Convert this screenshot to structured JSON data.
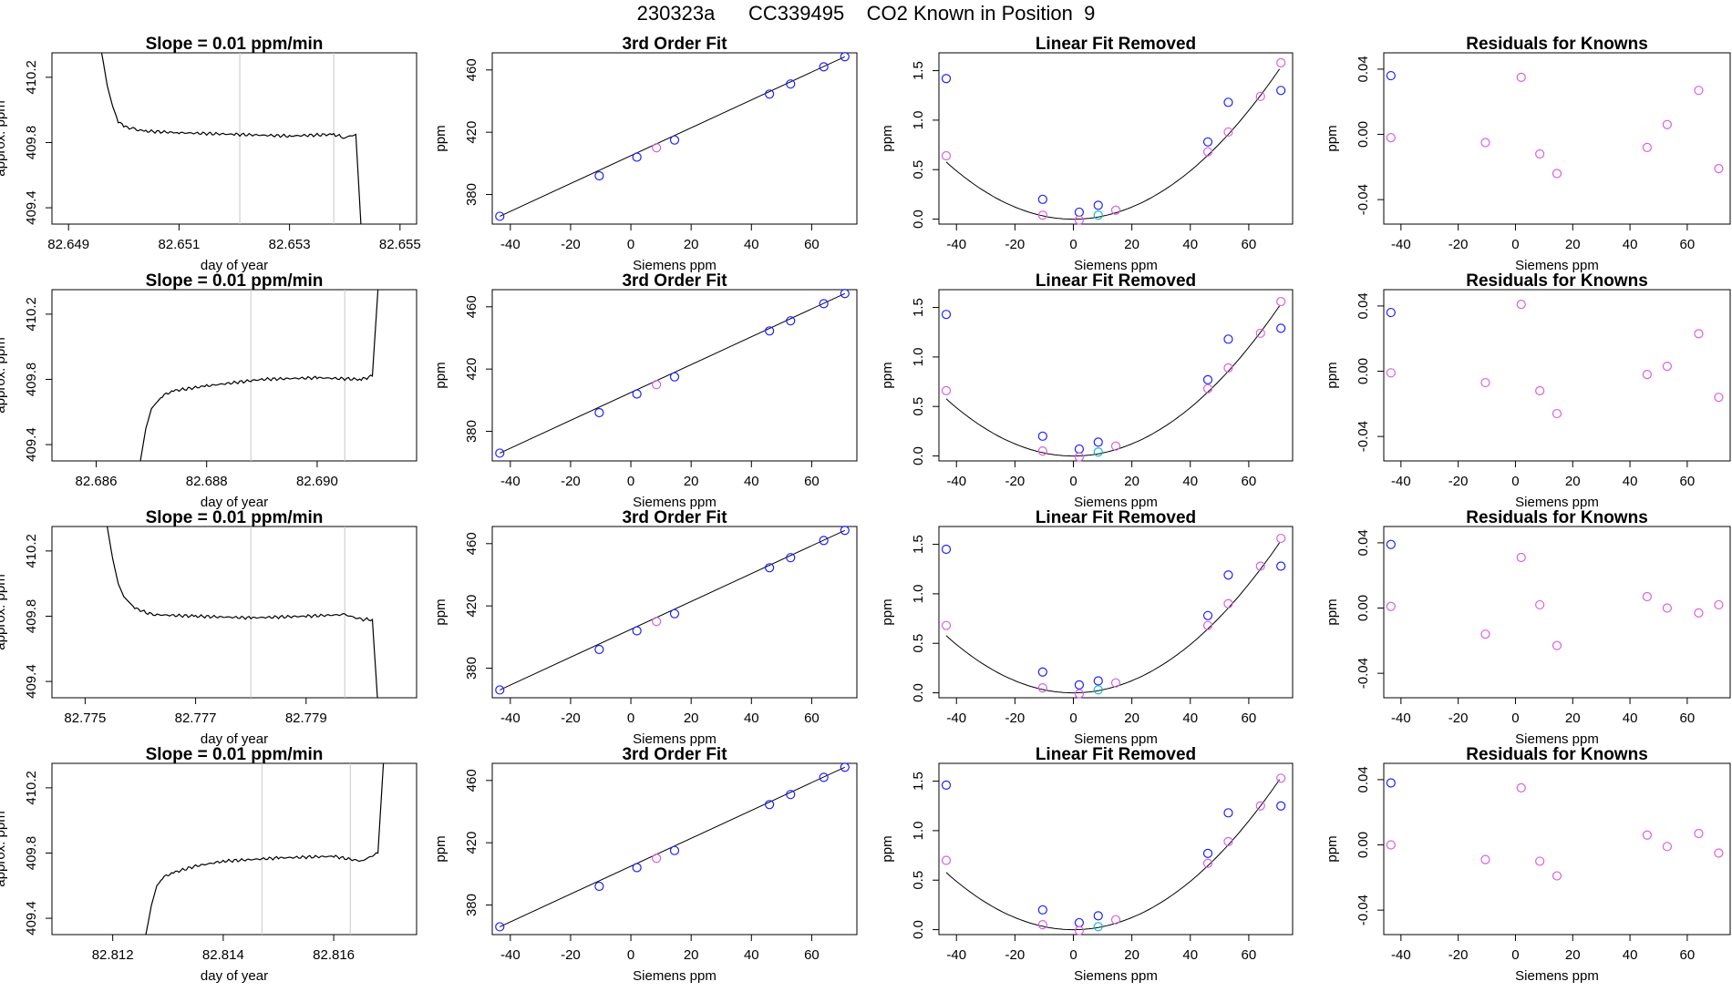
{
  "title": "230323a      CC339495    CO2 Known in Position  9",
  "colors": {
    "line": "#000000",
    "blue": "#1f1fff",
    "magenta": "#d95fe0",
    "cyan": "#12b8c8",
    "red": "#e03030",
    "gray": "#c8c8c8"
  },
  "chart_data": [
    {
      "type": "line",
      "row": 0,
      "col": 0,
      "title": "Slope =  0.01  ppm/min",
      "xlabel": "day of year",
      "ylabel": "approx. ppm",
      "xlim": [
        82.6487,
        82.6553
      ],
      "ylim": [
        409.3,
        410.35
      ],
      "xticks": [
        "82.649",
        "82.651",
        "82.653",
        "82.655"
      ],
      "yticks": [
        "409.4",
        "409.8",
        "410.2"
      ],
      "vlines": [
        82.6521,
        82.6538
      ],
      "x": [
        82.6496,
        82.6497,
        82.6498,
        82.6499,
        82.65,
        82.6502,
        82.6504,
        82.651,
        82.652,
        82.653,
        82.6538,
        82.654,
        82.6542,
        82.6543
      ],
      "y": [
        410.35,
        410.15,
        410.02,
        409.93,
        409.9,
        409.88,
        409.87,
        409.86,
        409.85,
        409.84,
        409.85,
        409.83,
        409.85,
        409.25
      ]
    },
    {
      "type": "line",
      "row": 1,
      "col": 0,
      "title": "Slope =  0.01  ppm/min",
      "xlabel": "day of year",
      "ylabel": "approx. ppm",
      "xlim": [
        82.6852,
        82.6918
      ],
      "ylim": [
        409.3,
        410.35
      ],
      "xticks": [
        "82.686",
        "82.688",
        "82.690"
      ],
      "yticks": [
        "409.4",
        "409.8",
        "410.2"
      ],
      "vlines": [
        82.6888,
        82.6905
      ],
      "x": [
        82.6868,
        82.6869,
        82.687,
        82.6872,
        82.6874,
        82.688,
        82.689,
        82.69,
        82.6908,
        82.691,
        82.6911
      ],
      "y": [
        409.3,
        409.5,
        409.62,
        409.7,
        409.73,
        409.76,
        409.8,
        409.81,
        409.8,
        409.82,
        410.35
      ]
    },
    {
      "type": "line",
      "row": 2,
      "col": 0,
      "title": "Slope =  0.01  ppm/min",
      "xlabel": "day of year",
      "ylabel": "approx. ppm",
      "xlim": [
        82.7744,
        82.781
      ],
      "ylim": [
        409.3,
        410.35
      ],
      "xticks": [
        "82.775",
        "82.777",
        "82.779"
      ],
      "yticks": [
        "409.4",
        "409.8",
        "410.2"
      ],
      "vlines": [
        82.778,
        82.7797
      ],
      "x": [
        82.7754,
        82.7755,
        82.7756,
        82.7757,
        82.7759,
        82.7762,
        82.777,
        82.778,
        82.779,
        82.7797,
        82.78,
        82.7802,
        82.7803
      ],
      "y": [
        410.35,
        410.15,
        410.0,
        409.92,
        409.85,
        409.81,
        409.8,
        409.79,
        409.8,
        409.81,
        409.78,
        409.78,
        409.25
      ]
    },
    {
      "type": "line",
      "row": 3,
      "col": 0,
      "title": "Slope =  0.01  ppm/min",
      "xlabel": "day of year",
      "ylabel": "approx. ppm",
      "xlim": [
        82.8109,
        82.8175
      ],
      "ylim": [
        409.3,
        410.35
      ],
      "xticks": [
        "82.812",
        "82.814",
        "82.816"
      ],
      "yticks": [
        "409.4",
        "409.8",
        "410.2"
      ],
      "vlines": [
        82.8147,
        82.8163
      ],
      "x": [
        82.8126,
        82.8127,
        82.8128,
        82.8129,
        82.8131,
        82.8135,
        82.814,
        82.815,
        82.816,
        82.8165,
        82.8168,
        82.8169
      ],
      "y": [
        409.3,
        409.48,
        409.6,
        409.65,
        409.68,
        409.72,
        409.75,
        409.77,
        409.78,
        409.75,
        409.8,
        410.35
      ]
    },
    {
      "type": "scatter",
      "row": 0,
      "col": 1,
      "title": "3rd Order Fit",
      "xlabel": "Siemens ppm",
      "ylabel": "ppm",
      "xlim": [
        -46,
        75
      ],
      "ylim": [
        361,
        471
      ],
      "xticks": [
        -40,
        -20,
        0,
        20,
        40,
        60
      ],
      "yticks": [
        380,
        420,
        460
      ],
      "x": [
        -43.5,
        -10.5,
        2,
        8.5,
        14.5,
        46,
        53,
        64,
        71
      ],
      "y": [
        366,
        392,
        404,
        410,
        415,
        444.5,
        451,
        462,
        468.5
      ],
      "point_colors": [
        "blue",
        "blue",
        "blue",
        "magenta",
        "blue",
        "blue",
        "blue",
        "blue",
        "blue"
      ],
      "fit_line": [
        [
          -43.5,
          366
        ],
        [
          71,
          468.5
        ]
      ]
    },
    {
      "type": "scatter",
      "row": 1,
      "col": 1,
      "title": "3rd Order Fit",
      "xlabel": "Siemens ppm",
      "ylabel": "ppm",
      "xlim": [
        -46,
        75
      ],
      "ylim": [
        361,
        471
      ],
      "xticks": [
        -40,
        -20,
        0,
        20,
        40,
        60
      ],
      "yticks": [
        380,
        420,
        460
      ],
      "x": [
        -43.5,
        -10.5,
        2,
        8.5,
        14.5,
        46,
        53,
        64,
        71
      ],
      "y": [
        366,
        392,
        404,
        410,
        415,
        444.5,
        451,
        462,
        468.5
      ],
      "point_colors": [
        "blue",
        "blue",
        "blue",
        "magenta",
        "blue",
        "blue",
        "blue",
        "blue",
        "blue"
      ],
      "fit_line": [
        [
          -43.5,
          366
        ],
        [
          71,
          468.5
        ]
      ]
    },
    {
      "type": "scatter",
      "row": 2,
      "col": 1,
      "title": "3rd Order Fit",
      "xlabel": "Siemens ppm",
      "ylabel": "ppm",
      "xlim": [
        -46,
        75
      ],
      "ylim": [
        361,
        471
      ],
      "xticks": [
        -40,
        -20,
        0,
        20,
        40,
        60
      ],
      "yticks": [
        380,
        420,
        460
      ],
      "x": [
        -43.5,
        -10.5,
        2,
        8.5,
        14.5,
        46,
        53,
        64,
        71
      ],
      "y": [
        366,
        392,
        404,
        410,
        415,
        444.5,
        451,
        462,
        468.5
      ],
      "point_colors": [
        "blue",
        "blue",
        "blue",
        "magenta",
        "blue",
        "blue",
        "blue",
        "blue",
        "blue"
      ],
      "fit_line": [
        [
          -43.5,
          366
        ],
        [
          71,
          468.5
        ]
      ]
    },
    {
      "type": "scatter",
      "row": 3,
      "col": 1,
      "title": "3rd Order Fit",
      "xlabel": "Siemens ppm",
      "ylabel": "ppm",
      "xlim": [
        -46,
        75
      ],
      "ylim": [
        361,
        471
      ],
      "xticks": [
        -40,
        -20,
        0,
        20,
        40,
        60
      ],
      "yticks": [
        380,
        420,
        460
      ],
      "x": [
        -43.5,
        -10.5,
        2,
        8.5,
        14.5,
        46,
        53,
        64,
        71
      ],
      "y": [
        366,
        392,
        404,
        410,
        415,
        444.5,
        451,
        462,
        468.5
      ],
      "point_colors": [
        "blue",
        "blue",
        "blue",
        "magenta",
        "blue",
        "blue",
        "blue",
        "blue",
        "blue"
      ],
      "fit_line": [
        [
          -43.5,
          366
        ],
        [
          71,
          468.5
        ]
      ]
    },
    {
      "type": "scatter",
      "row": 0,
      "col": 2,
      "title": "Linear Fit Removed",
      "xlabel": "Siemens ppm",
      "ylabel": "ppm",
      "xlim": [
        -46,
        75
      ],
      "ylim": [
        -0.05,
        1.68
      ],
      "xticks": [
        -40,
        -20,
        0,
        20,
        40,
        60
      ],
      "yticks": [
        "0.0",
        "0.5",
        "1.0",
        "1.5"
      ],
      "x": [
        -43.5,
        -43.5,
        -10.5,
        -10.5,
        2,
        2,
        8.5,
        8.5,
        14.5,
        46,
        46,
        53,
        53,
        64,
        71,
        71
      ],
      "y": [
        1.42,
        0.64,
        0.2,
        0.04,
        0.07,
        -0.01,
        0.14,
        0.04,
        0.09,
        0.78,
        0.68,
        1.18,
        0.88,
        1.24,
        1.3,
        1.58
      ],
      "point_colors": [
        "blue",
        "magenta",
        "blue",
        "magenta",
        "blue",
        "magenta",
        "blue",
        "cyan",
        "magenta",
        "blue",
        "magenta",
        "blue",
        "magenta",
        "magenta",
        "blue",
        "magenta"
      ],
      "curve": {
        "a": 0.000305,
        "b": 0.0,
        "c": 0.0
      }
    },
    {
      "type": "scatter",
      "row": 1,
      "col": 2,
      "title": "Linear Fit Removed",
      "xlabel": "Siemens ppm",
      "ylabel": "ppm",
      "xlim": [
        -46,
        75
      ],
      "ylim": [
        -0.05,
        1.68
      ],
      "xticks": [
        -40,
        -20,
        0,
        20,
        40,
        60
      ],
      "yticks": [
        "0.0",
        "0.5",
        "1.0",
        "1.5"
      ],
      "x": [
        -43.5,
        -43.5,
        -10.5,
        -10.5,
        2,
        2,
        8.5,
        8.5,
        14.5,
        46,
        46,
        53,
        53,
        64,
        71,
        71
      ],
      "y": [
        1.43,
        0.66,
        0.2,
        0.05,
        0.07,
        -0.01,
        0.14,
        0.04,
        0.1,
        0.77,
        0.68,
        1.18,
        0.89,
        1.24,
        1.29,
        1.56
      ],
      "point_colors": [
        "blue",
        "magenta",
        "blue",
        "magenta",
        "blue",
        "magenta",
        "blue",
        "cyan",
        "magenta",
        "blue",
        "magenta",
        "blue",
        "magenta",
        "magenta",
        "blue",
        "magenta"
      ],
      "curve": {
        "a": 0.000305,
        "b": 0.0,
        "c": 0.0
      }
    },
    {
      "type": "scatter",
      "row": 2,
      "col": 2,
      "title": "Linear Fit Removed",
      "xlabel": "Siemens ppm",
      "ylabel": "ppm",
      "xlim": [
        -46,
        75
      ],
      "ylim": [
        -0.05,
        1.68
      ],
      "xticks": [
        -40,
        -20,
        0,
        20,
        40,
        60
      ],
      "yticks": [
        "0.0",
        "0.5",
        "1.0",
        "1.5"
      ],
      "x": [
        -43.5,
        -43.5,
        -10.5,
        -10.5,
        2,
        2,
        8.5,
        8.5,
        14.5,
        46,
        46,
        53,
        53,
        64,
        71,
        71
      ],
      "y": [
        1.45,
        0.68,
        0.21,
        0.05,
        0.08,
        -0.01,
        0.12,
        0.03,
        0.1,
        0.78,
        0.68,
        1.19,
        0.9,
        1.28,
        1.28,
        1.56
      ],
      "point_colors": [
        "blue",
        "magenta",
        "blue",
        "magenta",
        "blue",
        "magenta",
        "blue",
        "cyan",
        "magenta",
        "blue",
        "magenta",
        "blue",
        "magenta",
        "magenta",
        "blue",
        "magenta"
      ],
      "curve": {
        "a": 0.000305,
        "b": 0.0,
        "c": 0.0
      }
    },
    {
      "type": "scatter",
      "row": 3,
      "col": 2,
      "title": "Linear Fit Removed",
      "xlabel": "Siemens ppm",
      "ylabel": "ppm",
      "xlim": [
        -46,
        75
      ],
      "ylim": [
        -0.05,
        1.68
      ],
      "xticks": [
        -40,
        -20,
        0,
        20,
        40,
        60
      ],
      "yticks": [
        "0.0",
        "0.5",
        "1.0",
        "1.5"
      ],
      "x": [
        -43.5,
        -43.5,
        -10.5,
        -10.5,
        2,
        2,
        8.5,
        8.5,
        14.5,
        46,
        46,
        53,
        53,
        64,
        71,
        71
      ],
      "y": [
        1.46,
        0.7,
        0.2,
        0.05,
        0.07,
        -0.01,
        0.14,
        0.03,
        0.1,
        0.77,
        0.67,
        1.18,
        0.89,
        1.25,
        1.25,
        1.53
      ],
      "point_colors": [
        "blue",
        "magenta",
        "blue",
        "magenta",
        "blue",
        "magenta",
        "blue",
        "cyan",
        "magenta",
        "blue",
        "magenta",
        "blue",
        "magenta",
        "magenta",
        "blue",
        "magenta"
      ],
      "curve": {
        "a": 0.000305,
        "b": 0.0,
        "c": 0.0
      }
    },
    {
      "type": "scatter",
      "row": 0,
      "col": 3,
      "title": "Residuals for Knowns",
      "xlabel": "Siemens ppm",
      "ylabel": "ppm",
      "xlim": [
        -46,
        75
      ],
      "ylim": [
        -0.055,
        0.05
      ],
      "xticks": [
        -40,
        -20,
        0,
        20,
        40,
        60
      ],
      "yticks": [
        "-0.04",
        "0.00",
        "0.04"
      ],
      "x": [
        -43.5,
        -43.5,
        -10.5,
        2,
        8.5,
        14.5,
        46,
        53,
        64,
        71
      ],
      "y": [
        0.036,
        -0.002,
        -0.005,
        0.035,
        -0.012,
        -0.024,
        -0.008,
        0.006,
        0.027,
        -0.021
      ],
      "point_colors": [
        "blue",
        "magenta",
        "magenta",
        "magenta",
        "magenta",
        "magenta",
        "magenta",
        "magenta",
        "magenta",
        "magenta"
      ]
    },
    {
      "type": "scatter",
      "row": 1,
      "col": 3,
      "title": "Residuals for Knowns",
      "xlabel": "Siemens ppm",
      "ylabel": "ppm",
      "xlim": [
        -46,
        75
      ],
      "ylim": [
        -0.055,
        0.05
      ],
      "xticks": [
        -40,
        -20,
        0,
        20,
        40,
        60
      ],
      "yticks": [
        "-0.04",
        "0.00",
        "0.04"
      ],
      "x": [
        -43.5,
        -43.5,
        -10.5,
        2,
        8.5,
        14.5,
        46,
        53,
        64,
        71
      ],
      "y": [
        0.036,
        -0.001,
        -0.007,
        0.041,
        -0.012,
        -0.026,
        -0.002,
        0.003,
        0.023,
        -0.016
      ],
      "point_colors": [
        "blue",
        "magenta",
        "magenta",
        "magenta",
        "magenta",
        "magenta",
        "magenta",
        "magenta",
        "magenta",
        "magenta"
      ]
    },
    {
      "type": "scatter",
      "row": 2,
      "col": 3,
      "title": "Residuals for Knowns",
      "xlabel": "Siemens ppm",
      "ylabel": "ppm",
      "xlim": [
        -46,
        75
      ],
      "ylim": [
        -0.055,
        0.05
      ],
      "xticks": [
        -40,
        -20,
        0,
        20,
        40,
        60
      ],
      "yticks": [
        "-0.04",
        "0.00",
        "0.04"
      ],
      "x": [
        -43.5,
        -43.5,
        -10.5,
        2,
        8.5,
        14.5,
        46,
        53,
        64,
        71
      ],
      "y": [
        0.039,
        0.001,
        -0.016,
        0.031,
        0.002,
        -0.023,
        0.007,
        0.0,
        -0.003,
        0.002
      ],
      "point_colors": [
        "blue",
        "magenta",
        "magenta",
        "magenta",
        "magenta",
        "magenta",
        "magenta",
        "magenta",
        "magenta",
        "magenta"
      ]
    },
    {
      "type": "scatter",
      "row": 3,
      "col": 3,
      "title": "Residuals for Knowns",
      "xlabel": "Siemens ppm",
      "ylabel": "ppm",
      "xlim": [
        -46,
        75
      ],
      "ylim": [
        -0.055,
        0.05
      ],
      "xticks": [
        -40,
        -20,
        0,
        20,
        40,
        60
      ],
      "yticks": [
        "-0.04",
        "0.00",
        "0.04"
      ],
      "x": [
        -43.5,
        -43.5,
        -10.5,
        2,
        8.5,
        14.5,
        46,
        53,
        64,
        71
      ],
      "y": [
        0.038,
        0.0,
        -0.009,
        0.035,
        -0.01,
        -0.019,
        0.006,
        -0.001,
        0.007,
        -0.005
      ],
      "point_colors": [
        "blue",
        "magenta",
        "magenta",
        "magenta",
        "magenta",
        "magenta",
        "magenta",
        "magenta",
        "magenta",
        "magenta"
      ]
    }
  ]
}
